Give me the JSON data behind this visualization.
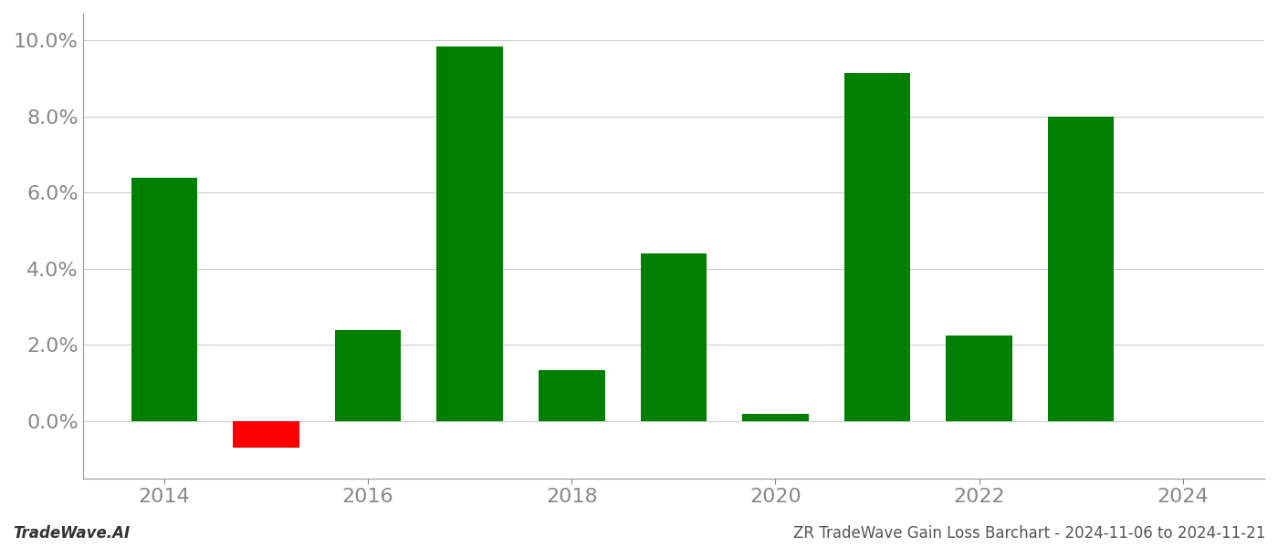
{
  "years": [
    2014,
    2015,
    2016,
    2017,
    2018,
    2019,
    2020,
    2021,
    2022,
    2023
  ],
  "values": [
    0.064,
    -0.007,
    0.024,
    0.0985,
    0.0135,
    0.044,
    0.002,
    0.0915,
    0.0225,
    0.08
  ],
  "bar_colors_positive": "#008000",
  "bar_colors_negative": "#ff0000",
  "ylim_min": -0.015,
  "ylim_max": 0.107,
  "footer_left": "TradeWave.AI",
  "footer_right": "ZR TradeWave Gain Loss Barchart - 2024-11-06 to 2024-11-21",
  "background_color": "#ffffff",
  "bar_width": 0.65,
  "grid_color": "#cccccc",
  "tick_label_color": "#888888",
  "ytick_fontsize": 16,
  "xtick_fontsize": 16,
  "footer_fontsize": 12,
  "xlim_min": 2013.2,
  "xlim_max": 2024.8,
  "xticks": [
    2014,
    2016,
    2018,
    2020,
    2022,
    2024
  ],
  "yticks": [
    0.0,
    0.02,
    0.04,
    0.06,
    0.08,
    0.1
  ],
  "spine_color": "#999999"
}
